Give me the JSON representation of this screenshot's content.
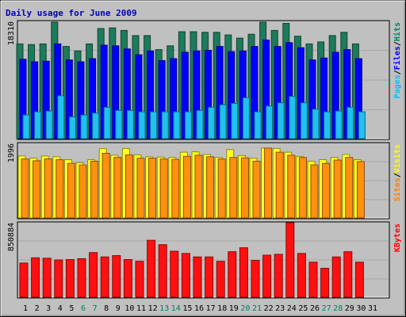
{
  "chart_data": {
    "type": "bar",
    "title": "Daily usage for June 2009",
    "categories": [
      "1",
      "2",
      "3",
      "4",
      "5",
      "6",
      "7",
      "8",
      "9",
      "10",
      "11",
      "12",
      "13",
      "14",
      "15",
      "16",
      "17",
      "18",
      "19",
      "20",
      "21",
      "22",
      "23",
      "24",
      "25",
      "26",
      "27",
      "28",
      "29",
      "30",
      "31"
    ],
    "weekend_days": [
      "6",
      "7",
      "13",
      "14",
      "20",
      "21",
      "27",
      "28"
    ],
    "panels": [
      {
        "id": "top",
        "ymax_label": "18310",
        "ymax": 18310,
        "side_label": [
          {
            "text": "Pages",
            "color": "#00c0ff"
          },
          {
            "text": "/",
            "color": "#000000"
          },
          {
            "text": "Files",
            "color": "#0000ff"
          },
          {
            "text": "/",
            "color": "#000000"
          },
          {
            "text": "Hits",
            "color": "#008060"
          }
        ],
        "series": [
          {
            "name": "Hits",
            "color": "#1e7a5c",
            "values": [
              14800,
              14700,
              14800,
              18200,
              14400,
              13700,
              14800,
              17200,
              17300,
              16900,
              16100,
              16100,
              13900,
              14500,
              16700,
              16700,
              16600,
              16600,
              16200,
              15700,
              16300,
              18200,
              16900,
              18000,
              16000,
              14800,
              15100,
              16100,
              16600,
              14800,
              0
            ]
          },
          {
            "name": "Files",
            "color": "#0000ff",
            "values": [
              12400,
              12000,
              12100,
              14800,
              12300,
              12000,
              12500,
              14600,
              14500,
              14000,
              13100,
              13700,
              12200,
              12500,
              13500,
              13700,
              13800,
              14400,
              13600,
              13700,
              14400,
              15400,
              14400,
              15000,
              14200,
              12300,
              12600,
              13500,
              13900,
              12500,
              0
            ]
          },
          {
            "name": "Pages",
            "color": "#20c0f0",
            "values": [
              3700,
              4200,
              4300,
              6700,
              3400,
              3700,
              4000,
              4900,
              4400,
              4400,
              4200,
              4200,
              4200,
              4200,
              4200,
              4400,
              4900,
              5300,
              5500,
              6400,
              4200,
              5100,
              5600,
              6600,
              5600,
              4600,
              4200,
              4300,
              4900,
              4200,
              0
            ]
          }
        ]
      },
      {
        "id": "middle",
        "ymax_label": "1996",
        "ymax": 1996,
        "side_label": [
          {
            "text": "Sites",
            "color": "#ff8000"
          },
          {
            "text": "/",
            "color": "#000000"
          },
          {
            "text": "Visits",
            "color": "#ffff00"
          }
        ],
        "series": [
          {
            "name": "Visits",
            "color": "#ffff20",
            "values": [
              1660,
              1600,
              1660,
              1640,
              1560,
              1480,
              1560,
              1860,
              1680,
              1860,
              1690,
              1640,
              1630,
              1620,
              1760,
              1770,
              1700,
              1620,
              1830,
              1670,
              1600,
              1870,
              1860,
              1760,
              1650,
              1520,
              1560,
              1620,
              1700,
              1560,
              0
            ]
          },
          {
            "name": "Sites",
            "color": "#ff9010",
            "values": [
              1580,
              1530,
              1580,
              1560,
              1460,
              1420,
              1520,
              1730,
              1620,
              1690,
              1600,
              1600,
              1580,
              1570,
              1650,
              1680,
              1640,
              1580,
              1620,
              1610,
              1520,
              1870,
              1760,
              1680,
              1620,
              1420,
              1460,
              1550,
              1620,
              1510,
              0
            ]
          }
        ]
      },
      {
        "id": "bottom",
        "ymax_label": "850884",
        "ymax": 850884,
        "side_label": [
          {
            "text": "KBytes",
            "color": "#ff0000"
          }
        ],
        "series": [
          {
            "name": "KBytes",
            "color": "#ff1010",
            "values": [
              390000,
              450000,
              445000,
              425000,
              430000,
              440000,
              510000,
              460000,
              475000,
              430000,
              410000,
              650000,
              600000,
              525000,
              500000,
              460000,
              460000,
              410000,
              520000,
              565000,
              420000,
              480000,
              490000,
              850884,
              500000,
              400000,
              330000,
              460000,
              520000,
              400000,
              0
            ]
          }
        ]
      }
    ]
  }
}
